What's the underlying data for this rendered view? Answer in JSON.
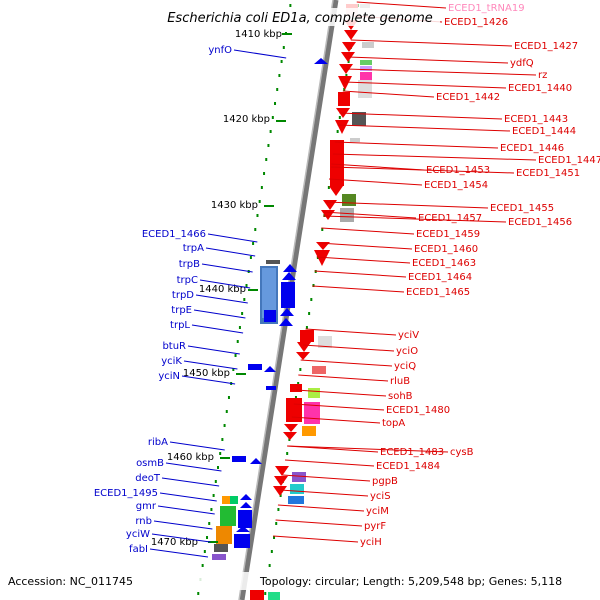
{
  "title": "Escherichia coli ED1a, complete genome",
  "accession": "Accession: NC_011745",
  "topology": "Topology: circular; Length: 5,209,548 bp; Genes: 5,118",
  "colors": {
    "forward_label": "#0000cc",
    "reverse_label": "#dd0000",
    "trna_label": "#ff88bb",
    "forward_gene": "#0000ee",
    "reverse_gene": "#ee0000",
    "tick": "#008800",
    "backbone": "#888888"
  },
  "ticks": [
    {
      "label": "1410 kbp"
    },
    {
      "label": "1420 kbp"
    },
    {
      "label": "1430 kbp"
    },
    {
      "label": "1440 kbp"
    },
    {
      "label": "1450 kbp"
    },
    {
      "label": "1460 kbp"
    },
    {
      "label": "1470 kbp"
    }
  ],
  "forward_genes": [
    {
      "name": "ynfO"
    },
    {
      "name": "ECED1_1466"
    },
    {
      "name": "trpA"
    },
    {
      "name": "trpB"
    },
    {
      "name": "trpC"
    },
    {
      "name": "trpD"
    },
    {
      "name": "trpE"
    },
    {
      "name": "trpL"
    },
    {
      "name": "btuR"
    },
    {
      "name": "yciK"
    },
    {
      "name": "yciN"
    },
    {
      "name": "ribA"
    },
    {
      "name": "osmB"
    },
    {
      "name": "deoT"
    },
    {
      "name": "ECED1_1495"
    },
    {
      "name": "gmr"
    },
    {
      "name": "rnb"
    },
    {
      "name": "yciW"
    },
    {
      "name": "fabI"
    }
  ],
  "reverse_genes": [
    {
      "name": "ECED1_tRNA19"
    },
    {
      "name": "ECED1_1426"
    },
    {
      "name": "ECED1_1427"
    },
    {
      "name": "ydfQ"
    },
    {
      "name": "rz"
    },
    {
      "name": "ECED1_1440"
    },
    {
      "name": "ECED1_1442"
    },
    {
      "name": "ECED1_1443"
    },
    {
      "name": "ECED1_1444"
    },
    {
      "name": "ECED1_1446"
    },
    {
      "name": "ECED1_1447"
    },
    {
      "name": "ECED1_1451"
    },
    {
      "name": "ECED1_1453"
    },
    {
      "name": "ECED1_1454"
    },
    {
      "name": "ECED1_1455"
    },
    {
      "name": "ECED1_1456"
    },
    {
      "name": "ECED1_1457"
    },
    {
      "name": "ECED1_1459"
    },
    {
      "name": "ECED1_1460"
    },
    {
      "name": "ECED1_1463"
    },
    {
      "name": "ECED1_1464"
    },
    {
      "name": "ECED1_1465"
    },
    {
      "name": "yciV"
    },
    {
      "name": "yciO"
    },
    {
      "name": "yciQ"
    },
    {
      "name": "rluB"
    },
    {
      "name": "sohB"
    },
    {
      "name": "ECED1_1480"
    },
    {
      "name": "topA"
    },
    {
      "name": "ECED1_1483"
    },
    {
      "name": "cysB"
    },
    {
      "name": "ECED1_1484"
    },
    {
      "name": "pgpB"
    },
    {
      "name": "yciS"
    },
    {
      "name": "yciM"
    },
    {
      "name": "pyrF"
    },
    {
      "name": "yciH"
    }
  ]
}
